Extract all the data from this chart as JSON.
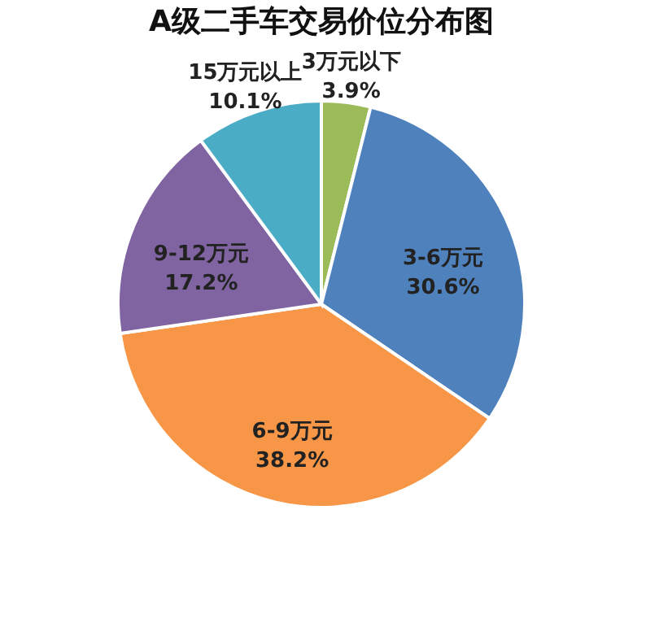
{
  "chart_data": {
    "type": "pie",
    "title": "A级二手车交易价位分布图",
    "categories": [
      "3万元以下",
      "3-6万元",
      "6-9万元",
      "9-12万元",
      "15万元以上"
    ],
    "values": [
      3.9,
      30.6,
      38.2,
      17.2,
      10.1
    ],
    "value_labels": [
      "3.9%",
      "30.6%",
      "38.2%",
      "17.2%",
      "10.1%"
    ],
    "colors": [
      "#9bbb59",
      "#4f81bd",
      "#f79646",
      "#8064a2",
      "#4bacc6"
    ]
  }
}
